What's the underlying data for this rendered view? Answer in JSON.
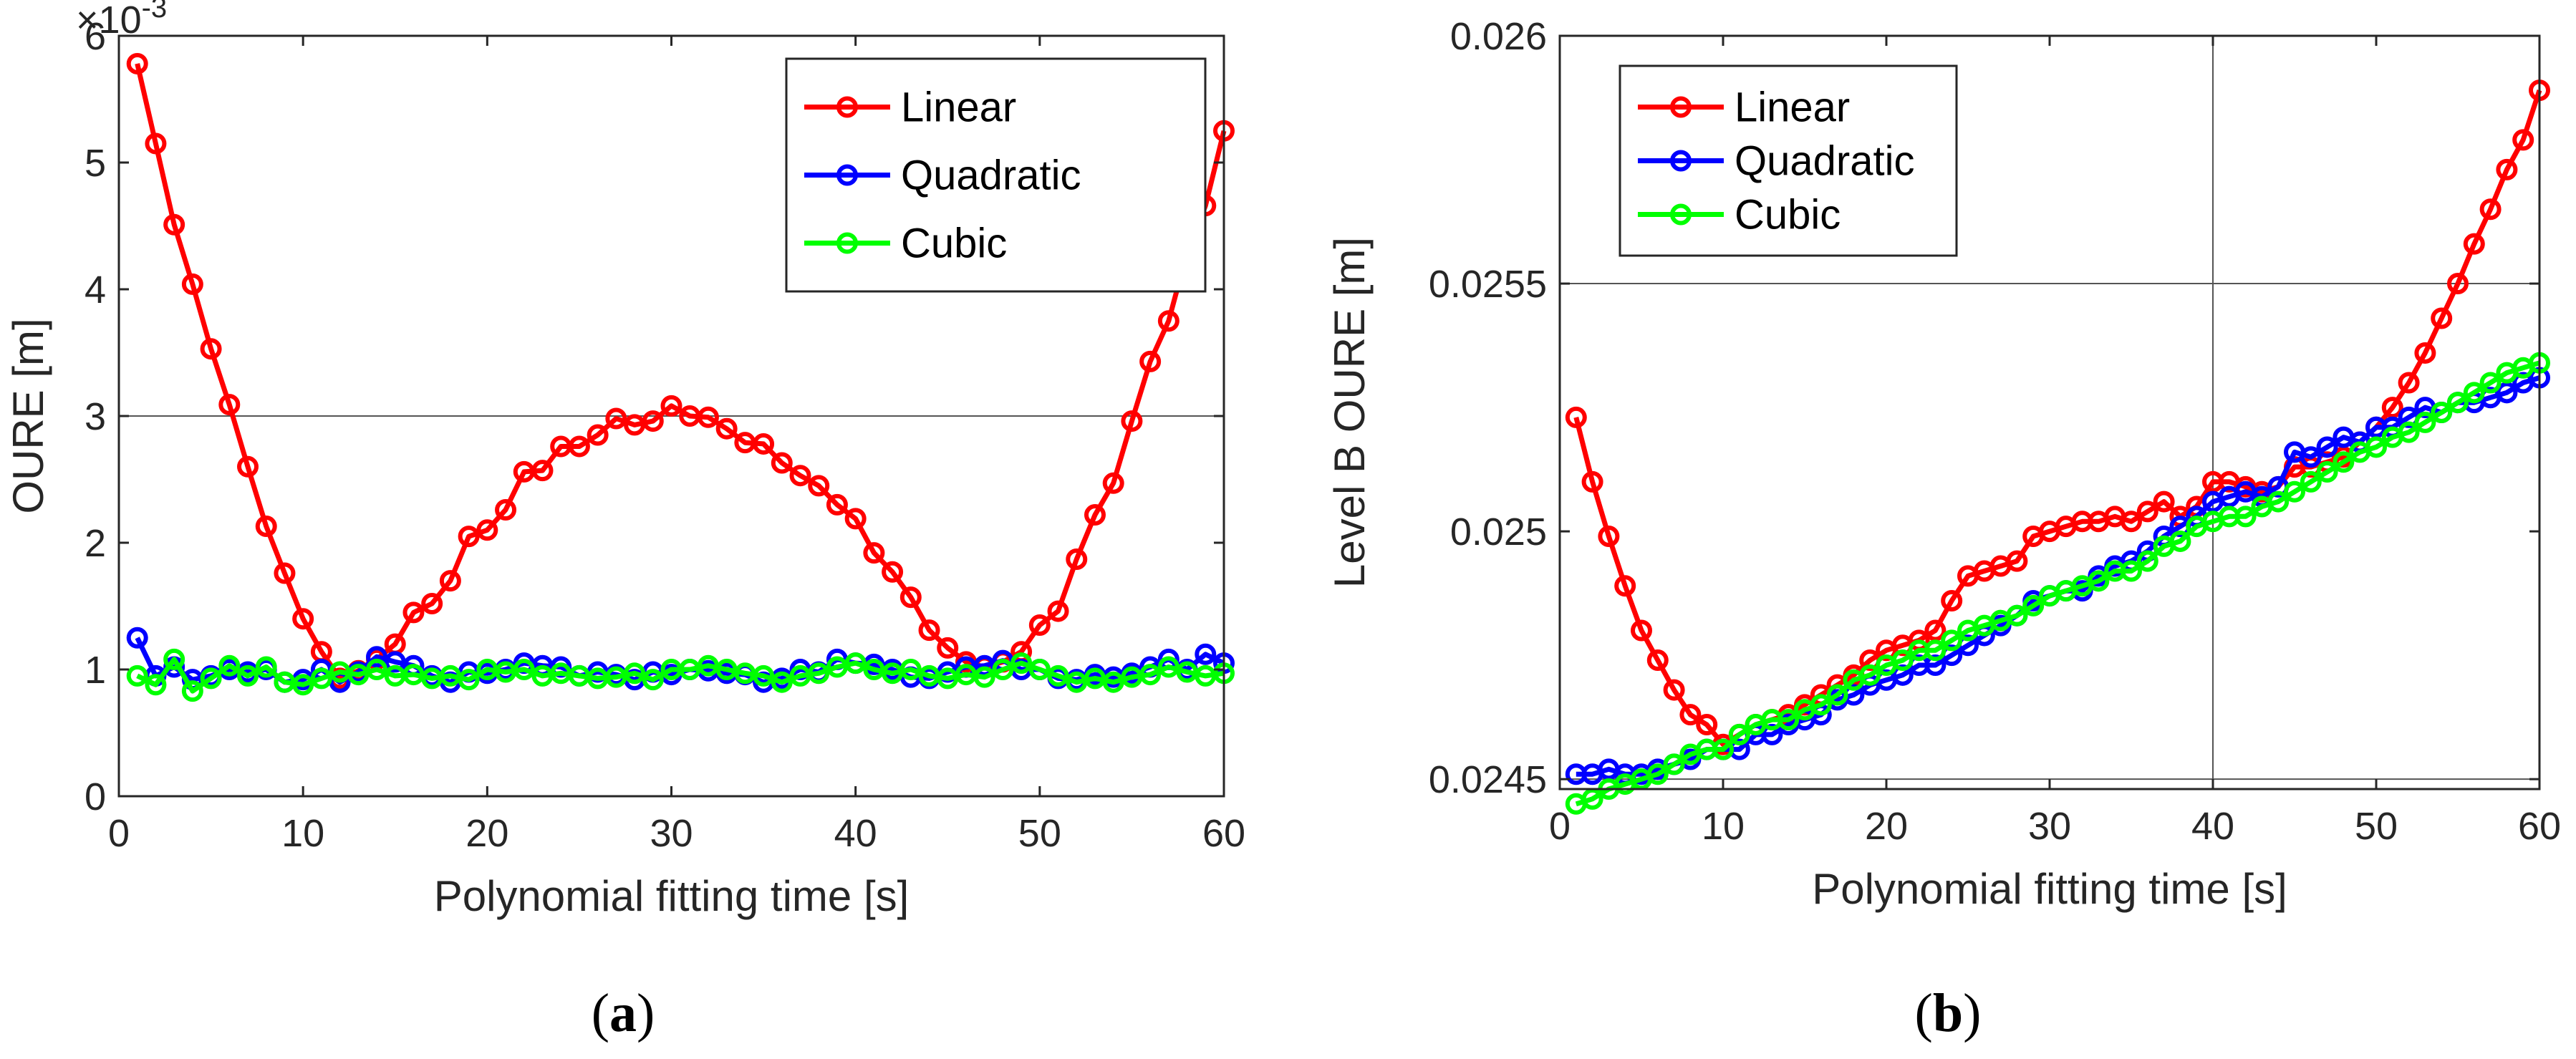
{
  "chart_data": [
    {
      "type": "line",
      "panel": "a",
      "caption_letter": "a",
      "xlabel": "Polynomial fitting time [s]",
      "ylabel": "OURE [m]",
      "xlim": [
        0,
        60
      ],
      "ylim": [
        0,
        6
      ],
      "xticks": [
        0,
        10,
        20,
        30,
        40,
        50,
        60
      ],
      "yticks": [
        0,
        1,
        2,
        3,
        4,
        5,
        6
      ],
      "ytick_labels": [
        "0",
        "1",
        "2",
        "3",
        "4",
        "5",
        "6"
      ],
      "multiplier_base": "×10",
      "multiplier_exp": "-3",
      "gridlines_y": [
        3
      ],
      "gridlines_x": [],
      "legend_position": "top-right",
      "series": [
        {
          "name": "Linear",
          "color": "#ff0000",
          "x": [
            1,
            2,
            3,
            4,
            5,
            6,
            7,
            8,
            9,
            10,
            11,
            12,
            13,
            14,
            15,
            16,
            17,
            18,
            19,
            20,
            21,
            22,
            23,
            24,
            25,
            26,
            27,
            28,
            29,
            30,
            31,
            32,
            33,
            34,
            35,
            36,
            37,
            38,
            39,
            40,
            41,
            42,
            43,
            44,
            45,
            46,
            47,
            48,
            49,
            50,
            51,
            52,
            53,
            54,
            55,
            56,
            57,
            58,
            59,
            60
          ],
          "y": [
            5.78,
            5.15,
            4.51,
            4.04,
            3.53,
            3.09,
            2.6,
            2.13,
            1.76,
            1.4,
            1.14,
            0.93,
            0.99,
            1.08,
            1.2,
            1.45,
            1.52,
            1.7,
            2.05,
            2.1,
            2.26,
            2.56,
            2.57,
            2.76,
            2.76,
            2.85,
            2.98,
            2.93,
            2.96,
            3.08,
            3.0,
            2.99,
            2.9,
            2.79,
            2.78,
            2.63,
            2.53,
            2.45,
            2.3,
            2.19,
            1.92,
            1.77,
            1.57,
            1.31,
            1.17,
            1.06,
            1.02,
            1.06,
            1.14,
            1.35,
            1.46,
            1.87,
            2.22,
            2.47,
            2.96,
            3.43,
            3.75,
            4.29,
            4.66,
            5.25
          ]
        },
        {
          "name": "Quadratic",
          "color": "#0000ff",
          "x": [
            1,
            2,
            3,
            4,
            5,
            6,
            7,
            8,
            9,
            10,
            11,
            12,
            13,
            14,
            15,
            16,
            17,
            18,
            19,
            20,
            21,
            22,
            23,
            24,
            25,
            26,
            27,
            28,
            29,
            30,
            31,
            32,
            33,
            34,
            35,
            36,
            37,
            38,
            39,
            40,
            41,
            42,
            43,
            44,
            45,
            46,
            47,
            48,
            49,
            50,
            51,
            52,
            53,
            54,
            55,
            56,
            57,
            58,
            59,
            60
          ],
          "y": [
            1.25,
            0.95,
            1.02,
            0.92,
            0.95,
            1.0,
            0.98,
            1.0,
            0.9,
            0.92,
            1.0,
            0.9,
            0.98,
            1.1,
            1.06,
            1.03,
            0.95,
            0.9,
            0.98,
            0.97,
            1.0,
            1.05,
            1.03,
            1.02,
            0.95,
            0.98,
            0.96,
            0.92,
            0.98,
            0.96,
            1.0,
            0.99,
            0.97,
            0.96,
            0.9,
            0.93,
            1.0,
            0.98,
            1.08,
            1.05,
            1.04,
            1.0,
            0.94,
            0.93,
            0.98,
            1.02,
            1.03,
            1.07,
            1.0,
            1.0,
            0.93,
            0.92,
            0.96,
            0.94,
            0.97,
            1.02,
            1.08,
            1.0,
            1.12,
            1.05
          ]
        },
        {
          "name": "Cubic",
          "color": "#00ff00",
          "x": [
            1,
            2,
            3,
            4,
            5,
            6,
            7,
            8,
            9,
            10,
            11,
            12,
            13,
            14,
            15,
            16,
            17,
            18,
            19,
            20,
            21,
            22,
            23,
            24,
            25,
            26,
            27,
            28,
            29,
            30,
            31,
            32,
            33,
            34,
            35,
            36,
            37,
            38,
            39,
            40,
            41,
            42,
            43,
            44,
            45,
            46,
            47,
            48,
            49,
            50,
            51,
            52,
            53,
            54,
            55,
            56,
            57,
            58,
            59,
            60
          ],
          "y": [
            0.95,
            0.88,
            1.08,
            0.83,
            0.93,
            1.03,
            0.95,
            1.02,
            0.9,
            0.88,
            0.93,
            0.98,
            0.96,
            1.0,
            0.95,
            0.96,
            0.93,
            0.95,
            0.92,
            1.0,
            0.98,
            1.0,
            0.95,
            0.97,
            0.95,
            0.93,
            0.94,
            0.97,
            0.92,
            1.0,
            1.0,
            1.03,
            1.0,
            0.97,
            0.95,
            0.9,
            0.95,
            0.97,
            1.02,
            1.05,
            1.0,
            0.97,
            1.0,
            0.95,
            0.93,
            0.96,
            0.94,
            1.0,
            1.05,
            1.0,
            0.95,
            0.9,
            0.93,
            0.9,
            0.94,
            0.96,
            1.02,
            0.98,
            0.95,
            0.97
          ]
        }
      ]
    },
    {
      "type": "line",
      "panel": "b",
      "caption_letter": "b",
      "xlabel": "Polynomial fitting time [s]",
      "ylabel": "Level B OURE [m]",
      "xlim": [
        0,
        60
      ],
      "ylim": [
        0.02448,
        0.026
      ],
      "xticks": [
        0,
        10,
        20,
        30,
        40,
        50,
        60
      ],
      "yticks": [
        0.0245,
        0.025,
        0.0255,
        0.026
      ],
      "ytick_labels": [
        "0.0245",
        "0.025",
        "0.0255",
        "0.026"
      ],
      "gridlines_y": [
        0.0245,
        0.0255
      ],
      "gridlines_x": [
        40
      ],
      "legend_position": "top-left",
      "series": [
        {
          "name": "Linear",
          "color": "#ff0000",
          "x": [
            1,
            2,
            3,
            4,
            5,
            6,
            7,
            8,
            9,
            10,
            11,
            12,
            13,
            14,
            15,
            16,
            17,
            18,
            19,
            20,
            21,
            22,
            23,
            24,
            25,
            26,
            27,
            28,
            29,
            30,
            31,
            32,
            33,
            34,
            35,
            36,
            37,
            38,
            39,
            40,
            41,
            42,
            43,
            44,
            45,
            46,
            47,
            48,
            49,
            50,
            51,
            52,
            53,
            54,
            55,
            56,
            57,
            58,
            59,
            60
          ],
          "y": [
            0.02523,
            0.0251,
            0.02499,
            0.02489,
            0.0248,
            0.02474,
            0.02468,
            0.02463,
            0.02461,
            0.02457,
            0.02459,
            0.02461,
            0.02462,
            0.02463,
            0.02465,
            0.02467,
            0.02469,
            0.02471,
            0.02474,
            0.02476,
            0.02477,
            0.02478,
            0.0248,
            0.02486,
            0.02491,
            0.02492,
            0.02493,
            0.02494,
            0.02499,
            0.025,
            0.02501,
            0.02502,
            0.02502,
            0.02503,
            0.02502,
            0.02504,
            0.02506,
            0.02503,
            0.02505,
            0.0251,
            0.0251,
            0.02509,
            0.02508,
            0.02509,
            0.02513,
            0.02513,
            0.02514,
            0.02515,
            0.02518,
            0.02521,
            0.02525,
            0.0253,
            0.02536,
            0.02543,
            0.0255,
            0.02558,
            0.02565,
            0.02573,
            0.02579,
            0.02589
          ]
        },
        {
          "name": "Quadratic",
          "color": "#0000ff",
          "x": [
            1,
            2,
            3,
            4,
            5,
            6,
            7,
            8,
            9,
            10,
            11,
            12,
            13,
            14,
            15,
            16,
            17,
            18,
            19,
            20,
            21,
            22,
            23,
            24,
            25,
            26,
            27,
            28,
            29,
            30,
            31,
            32,
            33,
            34,
            35,
            36,
            37,
            38,
            39,
            40,
            41,
            42,
            43,
            44,
            45,
            46,
            47,
            48,
            49,
            50,
            51,
            52,
            53,
            54,
            55,
            56,
            57,
            58,
            59,
            60
          ],
          "y": [
            0.02451,
            0.02451,
            0.02452,
            0.02451,
            0.02451,
            0.02452,
            0.02453,
            0.02454,
            0.02456,
            0.02456,
            0.02456,
            0.02459,
            0.02459,
            0.02461,
            0.02462,
            0.02463,
            0.02466,
            0.02467,
            0.02469,
            0.0247,
            0.02471,
            0.02473,
            0.02473,
            0.02475,
            0.02477,
            0.02479,
            0.02481,
            0.02483,
            0.02486,
            0.02487,
            0.02488,
            0.02488,
            0.02491,
            0.02493,
            0.02494,
            0.02496,
            0.02499,
            0.02501,
            0.02503,
            0.02506,
            0.02507,
            0.02508,
            0.02507,
            0.02509,
            0.02516,
            0.02515,
            0.02517,
            0.02519,
            0.02518,
            0.02521,
            0.02521,
            0.02523,
            0.02525,
            0.02524,
            0.02526,
            0.02526,
            0.02527,
            0.02528,
            0.0253,
            0.02531
          ]
        },
        {
          "name": "Cubic",
          "color": "#00ff00",
          "x": [
            1,
            2,
            3,
            4,
            5,
            6,
            7,
            8,
            9,
            10,
            11,
            12,
            13,
            14,
            15,
            16,
            17,
            18,
            19,
            20,
            21,
            22,
            23,
            24,
            25,
            26,
            27,
            28,
            29,
            30,
            31,
            32,
            33,
            34,
            35,
            36,
            37,
            38,
            39,
            40,
            41,
            42,
            43,
            44,
            45,
            46,
            47,
            48,
            49,
            50,
            51,
            52,
            53,
            54,
            55,
            56,
            57,
            58,
            59,
            60
          ],
          "y": [
            0.02445,
            0.02446,
            0.02448,
            0.02449,
            0.0245,
            0.02451,
            0.02453,
            0.02455,
            0.02456,
            0.02456,
            0.02459,
            0.02461,
            0.02462,
            0.02462,
            0.02464,
            0.02465,
            0.02467,
            0.0247,
            0.02471,
            0.02473,
            0.02474,
            0.02476,
            0.02476,
            0.02478,
            0.0248,
            0.02481,
            0.02482,
            0.02483,
            0.02485,
            0.02487,
            0.02488,
            0.02489,
            0.0249,
            0.02492,
            0.02492,
            0.02494,
            0.02497,
            0.02498,
            0.02501,
            0.02502,
            0.02503,
            0.02503,
            0.02505,
            0.02506,
            0.02508,
            0.0251,
            0.02512,
            0.02514,
            0.02516,
            0.02517,
            0.02519,
            0.0252,
            0.02522,
            0.02524,
            0.02526,
            0.02528,
            0.0253,
            0.02532,
            0.02533,
            0.02534
          ]
        }
      ]
    }
  ]
}
